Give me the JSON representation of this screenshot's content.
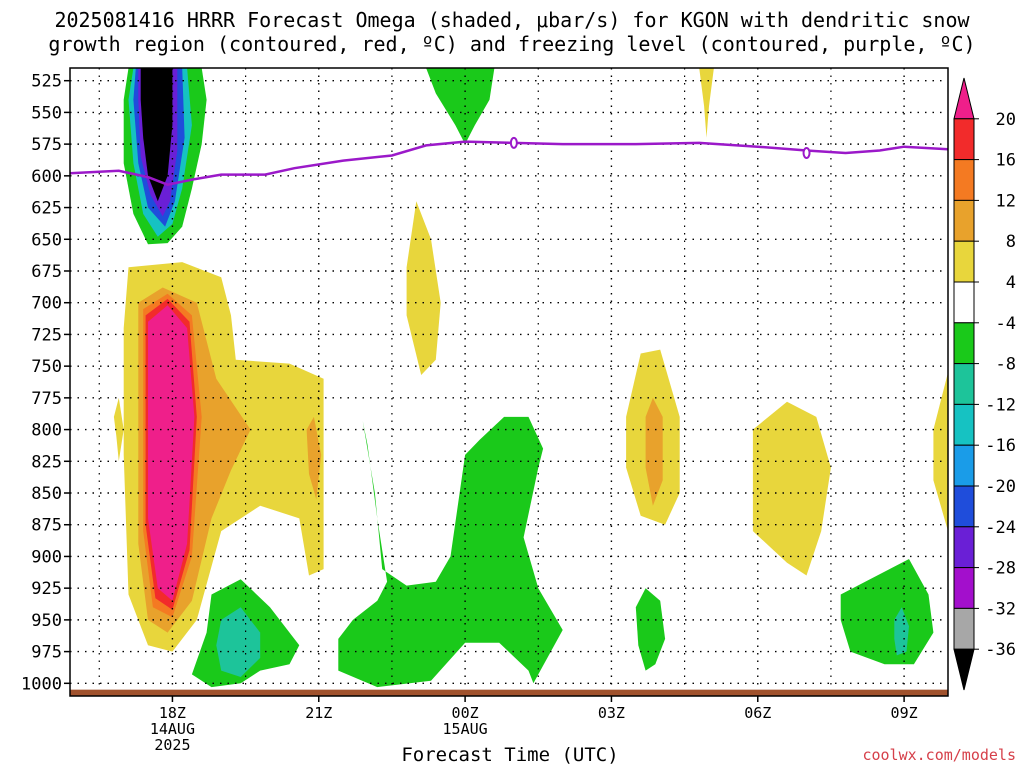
{
  "title_line1": "2025081416 HRRR Forecast Omega (shaded, μbar/s) for KGON with dendritic snow",
  "title_line2": "growth region (contoured, red, ºC) and freezing level (contoured, purple, ºC)",
  "credit": "coolwx.com/models",
  "chart_data": {
    "type": "heatmap",
    "xlabel": "Forecast Time (UTC)",
    "ylabel": "",
    "x_range_hours_utc": [
      15.9,
      33.9
    ],
    "y_range_mb": [
      1010,
      515
    ],
    "y_ticks": [
      525,
      550,
      575,
      600,
      625,
      650,
      675,
      700,
      725,
      750,
      775,
      800,
      825,
      850,
      875,
      900,
      925,
      950,
      975,
      1000
    ],
    "x_ticks": [
      {
        "hour": 18,
        "lines": [
          "18Z",
          "14AUG",
          "2025"
        ]
      },
      {
        "hour": 21,
        "lines": [
          "21Z"
        ]
      },
      {
        "hour": 24,
        "lines": [
          "00Z",
          "15AUG"
        ]
      },
      {
        "hour": 27,
        "lines": [
          "03Z"
        ]
      },
      {
        "hour": 30,
        "lines": [
          "06Z"
        ]
      },
      {
        "hour": 33,
        "lines": [
          "09Z"
        ]
      }
    ],
    "colorbar": {
      "labels": [
        "20",
        "16",
        "12",
        "8",
        "4",
        "-4",
        "-8",
        "-12",
        "-16",
        "-20",
        "-24",
        "-28",
        "-32",
        "-36"
      ],
      "colors": [
        "#ef1f8a",
        "#f22b2b",
        "#f47a22",
        "#e8a22c",
        "#e8d63c",
        "#ffffff",
        "#1ac91a",
        "#1dc49a",
        "#16c2c2",
        "#1a9ce8",
        "#1f4ddb",
        "#6a1fd6",
        "#a30fcc",
        "#a7a7a7",
        "#000000"
      ]
    },
    "freezing_level": {
      "color": "#9b19c9",
      "label": "0",
      "points": [
        [
          15.9,
          598
        ],
        [
          16.9,
          596
        ],
        [
          17.5,
          601
        ],
        [
          17.9,
          607
        ],
        [
          18.4,
          603
        ],
        [
          19.0,
          599
        ],
        [
          19.9,
          599
        ],
        [
          20.5,
          594
        ],
        [
          21.5,
          588
        ],
        [
          22.5,
          584
        ],
        [
          23.2,
          576
        ],
        [
          24.0,
          573
        ],
        [
          25.0,
          574
        ],
        [
          26.0,
          575
        ],
        [
          27.5,
          575
        ],
        [
          28.8,
          574
        ],
        [
          30.0,
          577
        ],
        [
          31.0,
          580
        ],
        [
          31.8,
          582
        ],
        [
          32.5,
          580
        ],
        [
          33.0,
          577
        ],
        [
          33.9,
          579
        ]
      ],
      "label_points": [
        [
          25.0,
          574
        ],
        [
          31.0,
          582
        ]
      ]
    },
    "regions": [
      {
        "name": "upper-green-left",
        "color": "#1ac91a",
        "points": [
          [
            17.1,
            515
          ],
          [
            18.6,
            515
          ],
          [
            18.7,
            540
          ],
          [
            18.6,
            575
          ],
          [
            18.4,
            610
          ],
          [
            18.2,
            640
          ],
          [
            17.9,
            653
          ],
          [
            17.5,
            654
          ],
          [
            17.2,
            630
          ],
          [
            17.0,
            590
          ],
          [
            17.0,
            540
          ]
        ]
      },
      {
        "name": "upper-cyan-left",
        "color": "#16c2c2",
        "points": [
          [
            17.2,
            515
          ],
          [
            18.3,
            515
          ],
          [
            18.4,
            560
          ],
          [
            18.2,
            610
          ],
          [
            18.0,
            638
          ],
          [
            17.7,
            648
          ],
          [
            17.4,
            630
          ],
          [
            17.2,
            590
          ],
          [
            17.1,
            540
          ]
        ]
      },
      {
        "name": "upper-blue-left",
        "color": "#1f4ddb",
        "points": [
          [
            17.25,
            515
          ],
          [
            18.2,
            515
          ],
          [
            18.25,
            570
          ],
          [
            18.05,
            620
          ],
          [
            17.85,
            640
          ],
          [
            17.5,
            625
          ],
          [
            17.3,
            590
          ],
          [
            17.2,
            540
          ]
        ]
      },
      {
        "name": "upper-purple-left",
        "color": "#6a1fd6",
        "points": [
          [
            17.3,
            515
          ],
          [
            18.1,
            515
          ],
          [
            18.1,
            580
          ],
          [
            17.95,
            620
          ],
          [
            17.8,
            632
          ],
          [
            17.55,
            615
          ],
          [
            17.35,
            585
          ],
          [
            17.3,
            540
          ]
        ]
      },
      {
        "name": "upper-black-left",
        "color": "#000000",
        "points": [
          [
            17.35,
            515
          ],
          [
            18.0,
            515
          ],
          [
            18.0,
            560
          ],
          [
            17.9,
            600
          ],
          [
            17.7,
            620
          ],
          [
            17.5,
            600
          ],
          [
            17.4,
            570
          ],
          [
            17.35,
            540
          ]
        ]
      },
      {
        "name": "upper-green-mid",
        "color": "#1ac91a",
        "points": [
          [
            23.2,
            515
          ],
          [
            24.6,
            515
          ],
          [
            24.5,
            540
          ],
          [
            24.2,
            560
          ],
          [
            24.0,
            575
          ],
          [
            23.8,
            560
          ],
          [
            23.4,
            535
          ]
        ]
      },
      {
        "name": "upper-yellow-right",
        "color": "#e8d63c",
        "points": [
          [
            28.8,
            515
          ],
          [
            29.1,
            515
          ],
          [
            29.0,
            545
          ],
          [
            28.95,
            570
          ],
          [
            28.9,
            545
          ]
        ]
      },
      {
        "name": "yellow-upper-mid",
        "color": "#e8d63c",
        "points": [
          [
            22.8,
            672
          ],
          [
            23.0,
            620
          ],
          [
            23.3,
            650
          ],
          [
            23.5,
            700
          ],
          [
            23.4,
            745
          ],
          [
            23.1,
            757
          ],
          [
            22.8,
            710
          ]
        ]
      },
      {
        "name": "yellow-left-big",
        "color": "#e8d63c",
        "points": [
          [
            17.1,
            672
          ],
          [
            18.2,
            668
          ],
          [
            19.0,
            680
          ],
          [
            19.2,
            710
          ],
          [
            19.3,
            745
          ],
          [
            20.4,
            748
          ],
          [
            21.1,
            760
          ],
          [
            21.1,
            850
          ],
          [
            21.1,
            910
          ],
          [
            20.8,
            915
          ],
          [
            20.6,
            870
          ],
          [
            19.8,
            860
          ],
          [
            19.0,
            880
          ],
          [
            18.5,
            950
          ],
          [
            18.0,
            975
          ],
          [
            17.5,
            970
          ],
          [
            17.1,
            930
          ],
          [
            17.0,
            820
          ],
          [
            17.0,
            720
          ]
        ]
      },
      {
        "name": "yellow-left-spot",
        "color": "#e8d63c",
        "points": [
          [
            16.8,
            790
          ],
          [
            16.9,
            775
          ],
          [
            17.0,
            800
          ],
          [
            16.9,
            825
          ],
          [
            16.85,
            805
          ]
        ]
      },
      {
        "name": "orange-left",
        "color": "#e8a22c",
        "points": [
          [
            17.3,
            700
          ],
          [
            17.8,
            688
          ],
          [
            18.5,
            700
          ],
          [
            18.9,
            760
          ],
          [
            19.6,
            800
          ],
          [
            19.2,
            832
          ],
          [
            18.8,
            870
          ],
          [
            18.4,
            935
          ],
          [
            17.9,
            960
          ],
          [
            17.5,
            950
          ],
          [
            17.3,
            890
          ],
          [
            17.3,
            760
          ]
        ]
      },
      {
        "name": "red-orange-left",
        "color": "#f47a22",
        "points": [
          [
            17.4,
            705
          ],
          [
            17.9,
            693
          ],
          [
            18.4,
            710
          ],
          [
            18.6,
            790
          ],
          [
            18.4,
            900
          ],
          [
            18.0,
            948
          ],
          [
            17.6,
            940
          ],
          [
            17.4,
            880
          ],
          [
            17.4,
            770
          ]
        ]
      },
      {
        "name": "red-left",
        "color": "#f22b2b",
        "points": [
          [
            17.45,
            710
          ],
          [
            17.9,
            697
          ],
          [
            18.35,
            715
          ],
          [
            18.5,
            790
          ],
          [
            18.35,
            895
          ],
          [
            18.0,
            942
          ],
          [
            17.65,
            933
          ],
          [
            17.45,
            875
          ],
          [
            17.45,
            770
          ]
        ]
      },
      {
        "name": "magenta-left",
        "color": "#ef1f8a",
        "points": [
          [
            17.5,
            715
          ],
          [
            17.9,
            702
          ],
          [
            18.3,
            720
          ],
          [
            18.45,
            790
          ],
          [
            18.3,
            890
          ],
          [
            18.0,
            935
          ],
          [
            17.7,
            925
          ],
          [
            17.5,
            870
          ],
          [
            17.5,
            770
          ]
        ]
      },
      {
        "name": "orange-spot-21z",
        "color": "#e8a22c",
        "points": [
          [
            20.75,
            800
          ],
          [
            20.9,
            790
          ],
          [
            21.05,
            820
          ],
          [
            20.95,
            855
          ],
          [
            20.8,
            835
          ]
        ]
      },
      {
        "name": "yellow-03z",
        "color": "#e8d63c",
        "points": [
          [
            27.3,
            790
          ],
          [
            27.6,
            740
          ],
          [
            28.0,
            737
          ],
          [
            28.4,
            790
          ],
          [
            28.4,
            850
          ],
          [
            28.1,
            875
          ],
          [
            27.6,
            868
          ],
          [
            27.3,
            830
          ]
        ]
      },
      {
        "name": "orange-03z",
        "color": "#e8a22c",
        "points": [
          [
            27.7,
            790
          ],
          [
            27.85,
            775
          ],
          [
            28.05,
            790
          ],
          [
            28.05,
            840
          ],
          [
            27.85,
            860
          ],
          [
            27.7,
            830
          ]
        ]
      },
      {
        "name": "yellow-06z",
        "color": "#e8d63c",
        "points": [
          [
            29.9,
            800
          ],
          [
            30.6,
            778
          ],
          [
            31.2,
            790
          ],
          [
            31.5,
            830
          ],
          [
            31.3,
            880
          ],
          [
            31.0,
            915
          ],
          [
            30.6,
            905
          ],
          [
            29.9,
            880
          ]
        ]
      },
      {
        "name": "yellow-right-edge",
        "color": "#e8d63c",
        "points": [
          [
            33.6,
            800
          ],
          [
            33.9,
            755
          ],
          [
            33.9,
            880
          ],
          [
            33.6,
            840
          ]
        ]
      },
      {
        "name": "green-21z-strip",
        "color": "#1ac91a",
        "points": [
          [
            21.9,
            793
          ],
          [
            22.0,
            812
          ],
          [
            22.2,
            870
          ],
          [
            22.4,
            920
          ],
          [
            22.2,
            935
          ],
          [
            21.7,
            950
          ],
          [
            21.4,
            965
          ],
          [
            21.4,
            990
          ],
          [
            22.2,
            1003
          ],
          [
            23.3,
            998
          ],
          [
            24.0,
            968
          ],
          [
            24.7,
            968
          ],
          [
            25.3,
            990
          ],
          [
            25.4,
            1000
          ],
          [
            26.0,
            958
          ],
          [
            25.5,
            925
          ],
          [
            25.2,
            885
          ],
          [
            25.5,
            830
          ],
          [
            25.6,
            815
          ],
          [
            25.3,
            790
          ],
          [
            24.8,
            790
          ],
          [
            24.3,
            808
          ],
          [
            24.0,
            820
          ],
          [
            23.7,
            900
          ],
          [
            23.4,
            920
          ],
          [
            22.8,
            923
          ],
          [
            22.3,
            910
          ],
          [
            22.15,
            850
          ]
        ]
      },
      {
        "name": "green-left-bottom",
        "color": "#1ac91a",
        "points": [
          [
            18.8,
            930
          ],
          [
            19.4,
            918
          ],
          [
            20.0,
            940
          ],
          [
            20.6,
            970
          ],
          [
            20.4,
            985
          ],
          [
            19.8,
            990
          ],
          [
            19.4,
            1000
          ],
          [
            18.8,
            1003
          ],
          [
            18.4,
            993
          ],
          [
            18.7,
            960
          ]
        ]
      },
      {
        "name": "cyan-left-bottom",
        "color": "#1dc49a",
        "points": [
          [
            19.0,
            950
          ],
          [
            19.4,
            940
          ],
          [
            19.8,
            960
          ],
          [
            19.8,
            980
          ],
          [
            19.4,
            995
          ],
          [
            19.0,
            990
          ],
          [
            18.9,
            970
          ]
        ]
      },
      {
        "name": "green-03z-bottom",
        "color": "#1ac91a",
        "points": [
          [
            27.5,
            940
          ],
          [
            27.7,
            925
          ],
          [
            28.0,
            935
          ],
          [
            28.1,
            965
          ],
          [
            27.9,
            985
          ],
          [
            27.7,
            990
          ],
          [
            27.55,
            970
          ]
        ]
      },
      {
        "name": "green-09z",
        "color": "#1ac91a",
        "points": [
          [
            31.7,
            930
          ],
          [
            32.3,
            918
          ],
          [
            33.1,
            902
          ],
          [
            33.5,
            930
          ],
          [
            33.6,
            960
          ],
          [
            33.2,
            985
          ],
          [
            32.6,
            985
          ],
          [
            31.9,
            975
          ],
          [
            31.7,
            950
          ]
        ]
      },
      {
        "name": "cyan-09z",
        "color": "#1dc49a",
        "points": [
          [
            32.8,
            950
          ],
          [
            32.95,
            940
          ],
          [
            33.1,
            955
          ],
          [
            33.05,
            975
          ],
          [
            32.85,
            978
          ],
          [
            32.8,
            965
          ]
        ]
      }
    ],
    "terrain": {
      "color": "#a0522d",
      "pressure_top": 1005
    }
  }
}
